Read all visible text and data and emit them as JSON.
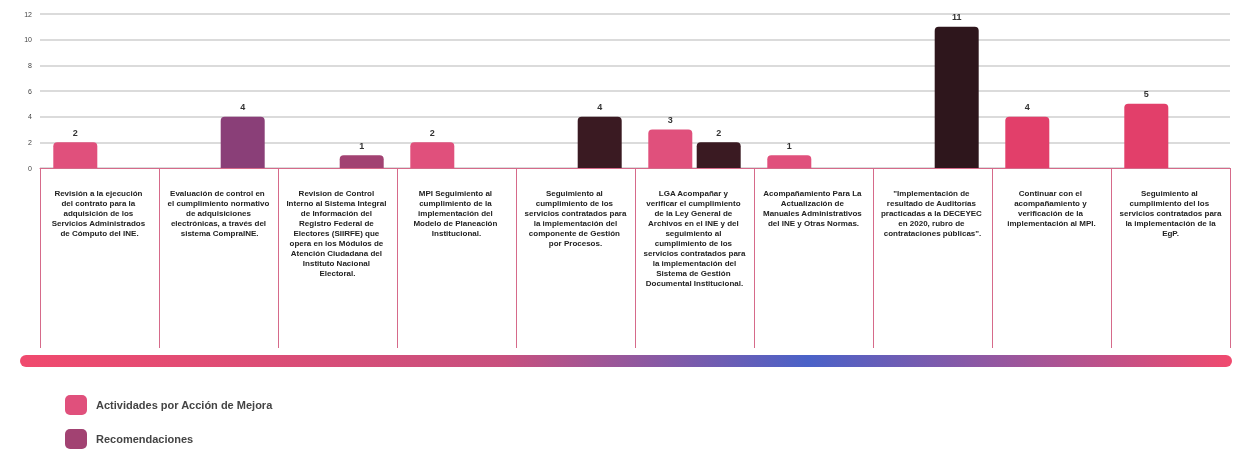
{
  "chart_data": {
    "type": "bar",
    "categories": [
      "Revisión a la ejecución del contrato para la adquisición de los Servicios Administrados de Cómputo del INE.",
      "Evaluación de control en el cumplimiento normativo de adquisiciones electrónicas, a través del sistema CompraINE.",
      "Revision de Control Interno al Sistema Integral de Información del Registro Federal de Electores (SIIRFE) que opera en los Módulos de Atención Ciudadana del Instituto Nacional Electoral.",
      "MPI Seguimiento al cumplimiento de la implementación del Modelo de Planeación Institucional.",
      "Seguimiento al cumplimiento de los servicios contratados para la implementación del componente de Gestión por Procesos.",
      "LGA Acompañar y verificar el cumplimiento de la Ley General de Archivos en el INE y del seguimiento al cumplimiento de los servicios contratados para la implementación del Sistema de Gestión Documental Institucional.",
      "Acompañamiento Para La Actualización de Manuales Administrativos del INE y Otras Normas.",
      "\"Implementación de resultado de Auditorías practicadas a la DECEYEC en 2020, rubro de contrataciones públicas\".",
      "Continuar con el acompañamiento y verificación de la implementación al MPI.",
      "Seguimiento al cumplimiento del los servicios contratados para la implementación de la EgP."
    ],
    "series": [
      {
        "name": "Actividades por Acción de Mejora",
        "color": "#e0507c",
        "colors": [
          "#e0507c",
          null,
          null,
          "#e0507c",
          null,
          "#e0507c",
          "#e0507c",
          null,
          "#e23f6a",
          "#e23f6a"
        ],
        "values": [
          2,
          null,
          null,
          2,
          null,
          3,
          1,
          null,
          4,
          5
        ]
      },
      {
        "name": "Recomendaciones",
        "color": "#a24272",
        "colors": [
          null,
          "#8a3f78",
          "#a24272",
          null,
          "#3a1a22",
          "#3a1a22",
          null,
          "#2e161c",
          null,
          null
        ],
        "values": [
          null,
          4,
          1,
          null,
          4,
          2,
          null,
          11,
          null,
          null
        ]
      }
    ],
    "ylim": [
      0,
      12
    ],
    "yticks": [
      0,
      2,
      4,
      6,
      8,
      10,
      12
    ],
    "grid": "y",
    "data_labels": true,
    "legend": "bottom left"
  }
}
